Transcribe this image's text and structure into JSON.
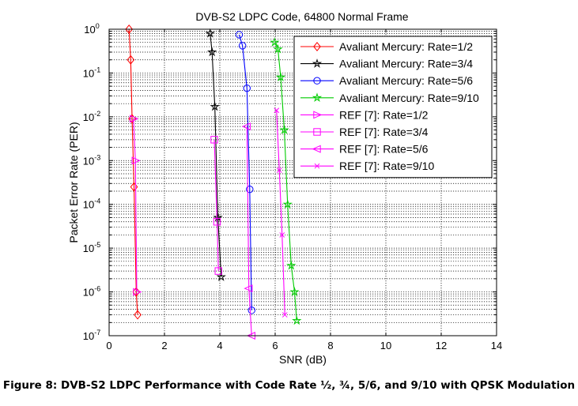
{
  "figure": {
    "caption": "Figure 8: DVB-S2 LDPC Performance with Code Rate ½, ¾, 5/6, and 9/10 with QPSK Modulation"
  },
  "chart_data": {
    "type": "line",
    "title": "DVB-S2 LDPC Code, 64800 Normal Frame",
    "xlabel": "SNR (dB)",
    "ylabel": "Packet Error Rate (PER)",
    "xlim": [
      0,
      14
    ],
    "ylim": [
      1e-07,
      1
    ],
    "yscale": "log",
    "x_ticks": [
      0,
      2,
      4,
      6,
      8,
      10,
      12,
      14
    ],
    "y_tick_exponents": [
      0,
      -1,
      -2,
      -3,
      -4,
      -5,
      -6,
      -7
    ],
    "grid": true,
    "legend_position": "top-right",
    "series": [
      {
        "name": "Avaliant Mercury: Rate=1/2",
        "color": "#ff0000",
        "marker": "diamond",
        "x": [
          0.72,
          0.78,
          0.83,
          0.9,
          0.98,
          1.03
        ],
        "y": [
          1,
          0.2,
          0.009,
          0.00025,
          1e-06,
          3e-07
        ]
      },
      {
        "name": "Avaliant Mercury: Rate=3/4",
        "color": "#000000",
        "marker": "star",
        "x": [
          3.65,
          3.72,
          3.82,
          3.93,
          4.05
        ],
        "y": [
          0.8,
          0.3,
          0.017,
          5e-05,
          2.2e-06
        ]
      },
      {
        "name": "Avaliant Mercury: Rate=5/6",
        "color": "#0000ff",
        "marker": "circle",
        "x": [
          4.7,
          4.82,
          4.98,
          5.08,
          5.15
        ],
        "y": [
          0.75,
          0.42,
          0.045,
          0.00022,
          3.8e-07
        ]
      },
      {
        "name": "Avaliant Mercury: Rate=9/10",
        "color": "#00cc00",
        "marker": "star",
        "x": [
          5.98,
          6.1,
          6.2,
          6.33,
          6.45,
          6.58,
          6.7,
          6.78
        ],
        "y": [
          0.5,
          0.35,
          0.08,
          0.005,
          0.0001,
          4e-06,
          1e-06,
          2.2e-07
        ]
      },
      {
        "name": "REF [7]: Rate=1/2",
        "color": "#ff00ff",
        "marker": "triangle-right",
        "x": [
          0.88,
          0.95,
          1.0
        ],
        "y": [
          0.009,
          0.001,
          1e-06
        ]
      },
      {
        "name": "REF [7]: Rate=3/4",
        "color": "#ff00ff",
        "marker": "square",
        "x": [
          3.8,
          3.9,
          3.95
        ],
        "y": [
          0.003,
          4e-05,
          3e-06
        ]
      },
      {
        "name": "REF [7]: Rate=5/6",
        "color": "#ff00ff",
        "marker": "triangle-left",
        "x": [
          4.98,
          5.05,
          5.15
        ],
        "y": [
          0.006,
          1.2e-06,
          1e-07
        ]
      },
      {
        "name": "REF [7]: Rate=9/10",
        "color": "#ff00ff",
        "marker": "x",
        "x": [
          6.05,
          6.15,
          6.25,
          6.35
        ],
        "y": [
          0.014,
          0.0006,
          2e-05,
          3e-07
        ]
      }
    ]
  }
}
